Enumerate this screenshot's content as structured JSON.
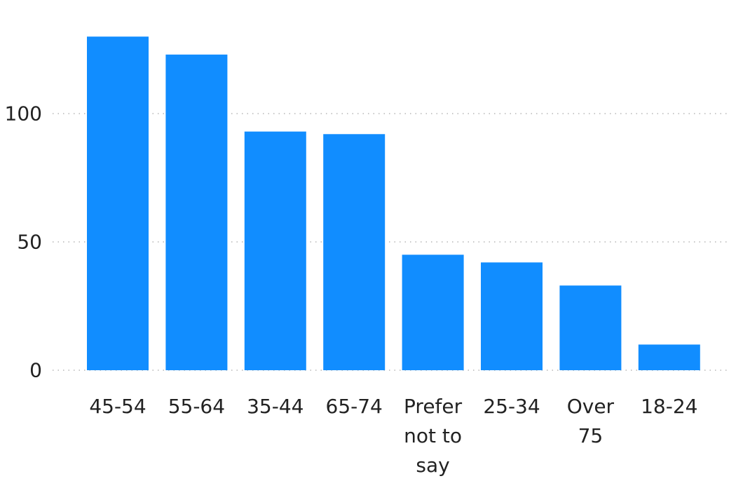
{
  "chart_data": {
    "type": "bar",
    "categories": [
      "45-54",
      "55-64",
      "35-44",
      "65-74",
      "Prefer not to say",
      "25-34",
      "Over 75",
      "18-24"
    ],
    "category_label_lines": [
      [
        "45-54"
      ],
      [
        "55-64"
      ],
      [
        "35-44"
      ],
      [
        "65-74"
      ],
      [
        "Prefer",
        "not to",
        "say"
      ],
      [
        "25-34"
      ],
      [
        "Over",
        "75"
      ],
      [
        "18-24"
      ]
    ],
    "values": [
      130,
      123,
      93,
      92,
      45,
      42,
      33,
      10
    ],
    "title": "",
    "xlabel": "",
    "ylabel": "",
    "ylim": [
      0,
      130
    ],
    "y_ticks": [
      0,
      50,
      100
    ],
    "grid": true,
    "legend": "none",
    "bar_color": "#118DFF",
    "grid_color": "#c8c8c8",
    "text_color": "#222222"
  }
}
